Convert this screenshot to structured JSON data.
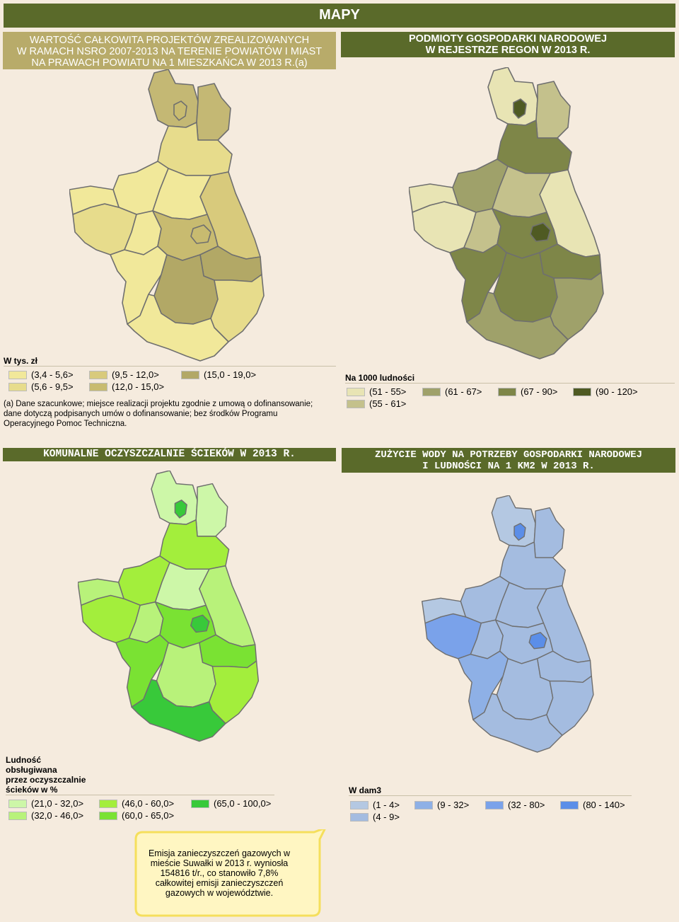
{
  "header": {
    "title": "MAPY"
  },
  "panel1": {
    "title_lines": [
      "WARTOŚĆ CAŁKOWITA PROJEKTÓW ZREALIZOWANYCH",
      "W RAMACH NSRO 2007-2013 NA TERENIE POWIATÓW I MIAST",
      "NA PRAWACH POWIATU NA 1 MIESZKAŃCA W 2013 R.(a)"
    ],
    "legend_title": "W tys. zł",
    "legend": [
      {
        "label": "(3,4 - 5,6>",
        "color": "#f1e89a"
      },
      {
        "label": "(5,6 - 9,5>",
        "color": "#e7dc8c"
      },
      {
        "label": "(9,5 - 12,0>",
        "color": "#d8ca7c"
      },
      {
        "label": "(12,0 - 15,0>",
        "color": "#c8bb70"
      },
      {
        "label": "(15,0 - 19,0>",
        "color": "#b2a866"
      }
    ],
    "note_lines": [
      "(a) Dane szacunkowe; miejsce realizacji projektu zgodnie z umową o dofinansowanie;",
      "dane dotyczą podpisanych umów o dofinansowanie; bez środków Programu",
      "Operacyjnego Pomoc Techniczna."
    ]
  },
  "panel2": {
    "title_lines": [
      "PODMIOTY GOSPODARKI NARODOWEJ",
      "W REJESTRZE REGON W 2013 R."
    ],
    "legend_title": "Na 1000 ludności",
    "legend": [
      {
        "label": "(51 - 55>",
        "color": "#e8e4b4"
      },
      {
        "label": "(55 - 61>",
        "color": "#c4c18c"
      },
      {
        "label": "(61 - 67>",
        "color": "#9fa16a"
      },
      {
        "label": "(67 - 90>",
        "color": "#7e8648"
      },
      {
        "label": "(90 - 120>",
        "color": "#4f5a22"
      }
    ]
  },
  "panel3": {
    "title_lines": [
      "KOMUNALNE OCZYSZCZALNIE ŚCIEKÓW W 2013 R."
    ],
    "legend_title_lines": [
      "Ludność",
      "obsługiwana",
      "przez oczyszczalnie",
      "ścieków w %"
    ],
    "legend": [
      {
        "label": "(21,0 - 32,0>",
        "color": "#cdf7a8"
      },
      {
        "label": "(32,0 - 46,0>",
        "color": "#b8f27a"
      },
      {
        "label": "(46,0 - 60,0>",
        "color": "#a3ee3c"
      },
      {
        "label": "(60,0 - 65,0>",
        "color": "#7ae233"
      },
      {
        "label": "(65,0 - 100,0>",
        "color": "#38c93a"
      }
    ]
  },
  "panel4": {
    "title_lines": [
      "ZUŻYCIE WODY NA POTRZEBY GOSPODARKI NARODOWEJ",
      "I LUDNOŚCI NA 1 KM2 W 2013 R."
    ],
    "legend_title": "W dam3",
    "legend": [
      {
        "label": "(1 - 4>",
        "color": "#b4c8e2"
      },
      {
        "label": "(4 - 9>",
        "color": "#a4bce0"
      },
      {
        "label": "(9 - 32>",
        "color": "#8eb0e6"
      },
      {
        "label": "(32 - 80>",
        "color": "#7aa2ea"
      },
      {
        "label": "(80 - 140>",
        "color": "#5b8ee8"
      }
    ]
  },
  "callout": {
    "lines": [
      "Emisja zanieczyszczeń gazowych w",
      "mieście Suwałki w 2013 r. wyniosła",
      "154816 t/r., co stanowiło 7,8%",
      "całkowitej emisji zanieczyszczeń",
      "gazowych w województwie."
    ]
  },
  "map_fills": {
    "m1": [
      "#c4b874",
      "#c4b874",
      "#e7dc8c",
      "#f1e89a",
      "#d8ca7c",
      "#f1e89a",
      "#e7dc8c",
      "#f1e89a",
      "#c8bb70",
      "#b2a866",
      "#f1e89a",
      "#b2a866",
      "#e7dc8c",
      "#f1e89a",
      "#f1e89a",
      "#c8bb70",
      "#c8bb70"
    ],
    "m2": [
      "#e8e4b4",
      "#c4c18c",
      "#7e8648",
      "#9fa16a",
      "#e8e4b4",
      "#c4c18c",
      "#e8e4b4",
      "#c4c18c",
      "#7e8648",
      "#7e8648",
      "#7e8648",
      "#7e8648",
      "#9fa16a",
      "#9fa16a",
      "#e8e4b4",
      "#4f5a22",
      "#4f5a22"
    ],
    "m3": [
      "#cdf7a8",
      "#cdf7a8",
      "#a3ee3c",
      "#a3ee3c",
      "#b8f27a",
      "#cdf7a8",
      "#a3ee3c",
      "#b8f27a",
      "#7ae233",
      "#7ae233",
      "#7ae233",
      "#b8f27a",
      "#a3ee3c",
      "#38c93a",
      "#b8f27a",
      "#38c93a",
      "#38c93a"
    ],
    "m4": [
      "#b4c8e2",
      "#a4bce0",
      "#a4bce0",
      "#a4bce0",
      "#a4bce0",
      "#a4bce0",
      "#7aa2ea",
      "#a4bce0",
      "#a4bce0",
      "#a4bce0",
      "#8eb0e6",
      "#a4bce0",
      "#a4bce0",
      "#a4bce0",
      "#b4c8e2",
      "#5b8ee8",
      "#5b8ee8"
    ]
  }
}
